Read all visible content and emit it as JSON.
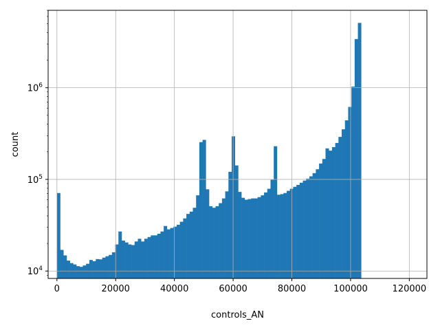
{
  "chart_data": {
    "type": "bar",
    "xlabel": "controls_AN",
    "ylabel": "count",
    "xlim": [
      -3000,
      126000
    ],
    "ylim": [
      8300,
      7000000
    ],
    "yscale": "log",
    "grid": true,
    "bar_color": "#1f77b4",
    "bin_start": 0,
    "bin_width": 1102,
    "x_ticks": [
      {
        "value": 0,
        "label": "0"
      },
      {
        "value": 20000,
        "label": "20000"
      },
      {
        "value": 40000,
        "label": "40000"
      },
      {
        "value": 60000,
        "label": "60000"
      },
      {
        "value": 80000,
        "label": "80000"
      },
      {
        "value": 100000,
        "label": "100000"
      },
      {
        "value": 120000,
        "label": "120000"
      }
    ],
    "y_ticks": [
      {
        "value": 10000,
        "base": "10",
        "exp": "4"
      },
      {
        "value": 100000,
        "base": "10",
        "exp": "5"
      },
      {
        "value": 1000000,
        "base": "10",
        "exp": "6"
      }
    ],
    "values": [
      71000,
      17000,
      14800,
      13000,
      12200,
      11800,
      11300,
      11100,
      11500,
      12000,
      13200,
      12800,
      13500,
      13400,
      14000,
      14500,
      15000,
      16000,
      19500,
      27000,
      21500,
      20500,
      19500,
      19200,
      21000,
      22500,
      21000,
      22500,
      23500,
      24500,
      24500,
      25500,
      27000,
      31000,
      28500,
      29500,
      30500,
      32000,
      34500,
      37500,
      42000,
      44500,
      49000,
      67000,
      255000,
      270000,
      78000,
      51000,
      49000,
      51000,
      55000,
      62000,
      74000,
      121000,
      295000,
      142000,
      73000,
      63000,
      60000,
      61000,
      62000,
      62000,
      64000,
      67000,
      72000,
      79000,
      99000,
      230000,
      68000,
      69000,
      71000,
      75000,
      79000,
      83000,
      87000,
      92000,
      97000,
      102000,
      108000,
      117000,
      129000,
      149000,
      167000,
      218000,
      206000,
      225000,
      250000,
      291000,
      352000,
      441000,
      618000,
      1030000,
      3400000,
      5100000
    ]
  }
}
